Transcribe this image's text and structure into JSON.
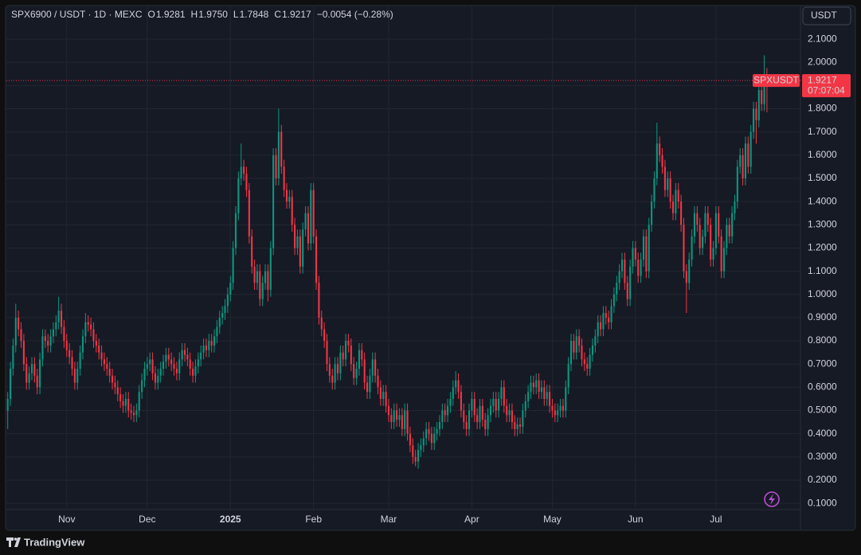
{
  "chart_data": {
    "type": "candlestick",
    "title": "SPX6900 / USDT · 1D · MEXC",
    "header": [
      {
        "key": "O",
        "value": "1.9281"
      },
      {
        "key": "H",
        "value": "1.9750"
      },
      {
        "key": "L",
        "value": "1.7848"
      },
      {
        "key": "C",
        "value": "1.9217"
      }
    ],
    "change": "−0.0054 (−0.28%)",
    "axis_unit": "USDT",
    "price_tag": {
      "symbol": "SPXUSDT",
      "countdown": "07:07:04"
    },
    "brand": "TradingView",
    "up_color": "#089981",
    "down_color": "#f23645",
    "open": [
      0.5,
      0.55,
      0.68,
      0.78,
      0.9,
      0.85,
      0.8,
      0.7,
      0.62,
      0.66,
      0.7,
      0.65,
      0.6,
      0.72,
      0.82,
      0.8,
      0.78,
      0.82,
      0.85,
      0.88,
      0.93,
      0.86,
      0.8,
      0.76,
      0.73,
      0.68,
      0.62,
      0.68,
      0.75,
      0.82,
      0.88,
      0.87,
      0.85,
      0.8,
      0.78,
      0.75,
      0.72,
      0.7,
      0.68,
      0.65,
      0.62,
      0.6,
      0.57,
      0.54,
      0.52,
      0.55,
      0.5,
      0.49,
      0.48,
      0.5,
      0.58,
      0.63,
      0.68,
      0.7,
      0.72,
      0.66,
      0.62,
      0.65,
      0.68,
      0.71,
      0.74,
      0.72,
      0.7,
      0.68,
      0.66,
      0.72,
      0.76,
      0.74,
      0.72,
      0.68,
      0.65,
      0.69,
      0.72,
      0.75,
      0.78,
      0.76,
      0.8,
      0.78,
      0.82,
      0.86,
      0.9,
      0.92,
      0.95,
      1.0,
      1.05,
      1.2,
      1.35,
      1.5,
      1.55,
      1.52,
      1.45,
      1.25,
      1.12,
      1.05,
      1.1,
      0.98,
      1.05,
      1.1,
      1.02,
      1.2,
      1.6,
      1.5,
      1.7,
      1.55,
      1.45,
      1.4,
      1.42,
      1.3,
      1.2,
      1.25,
      1.12,
      1.28,
      1.35,
      1.22,
      1.45,
      1.25,
      1.05,
      0.9,
      0.85,
      0.8,
      0.7,
      0.65,
      0.62,
      0.7,
      0.66,
      0.75,
      0.72,
      0.8,
      0.78,
      0.7,
      0.64,
      0.68,
      0.76,
      0.72,
      0.62,
      0.58,
      0.65,
      0.72,
      0.65,
      0.6,
      0.55,
      0.58,
      0.52,
      0.48,
      0.45,
      0.5,
      0.46,
      0.48,
      0.42,
      0.5,
      0.4,
      0.35,
      0.3,
      0.28,
      0.33,
      0.35,
      0.38,
      0.42,
      0.4,
      0.36,
      0.4,
      0.42,
      0.45,
      0.5,
      0.48,
      0.52,
      0.55,
      0.6,
      0.63,
      0.58,
      0.5,
      0.45,
      0.42,
      0.5,
      0.55,
      0.48,
      0.45,
      0.52,
      0.46,
      0.42,
      0.48,
      0.52,
      0.55,
      0.5,
      0.55,
      0.6,
      0.52,
      0.48,
      0.5,
      0.45,
      0.42,
      0.44,
      0.43,
      0.5,
      0.54,
      0.58,
      0.62,
      0.6,
      0.63,
      0.58,
      0.6,
      0.55,
      0.58,
      0.52,
      0.5,
      0.48,
      0.5,
      0.52,
      0.5,
      0.6,
      0.7,
      0.8,
      0.75,
      0.82,
      0.78,
      0.72,
      0.7,
      0.68,
      0.74,
      0.78,
      0.82,
      0.88,
      0.85,
      0.92,
      0.9,
      0.88,
      0.95,
      1.0,
      1.05,
      1.1,
      1.15,
      1.05,
      0.98,
      1.12,
      1.2,
      1.15,
      1.08,
      1.15,
      1.25,
      1.1,
      1.3,
      1.4,
      1.5,
      1.65,
      1.6,
      1.55,
      1.45,
      1.5,
      1.4,
      1.35,
      1.45,
      1.4,
      1.3,
      1.1,
      1.05,
      1.15,
      1.25,
      1.35,
      1.3,
      1.2,
      1.25,
      1.35,
      1.3,
      1.15,
      1.2,
      1.35,
      1.25,
      1.1,
      1.2,
      1.3,
      1.25,
      1.35,
      1.4,
      1.55,
      1.6,
      1.5,
      1.65,
      1.55,
      1.7,
      1.8,
      1.75,
      1.88,
      1.82,
      1.9281
    ],
    "high": [
      0.58,
      0.71,
      0.81,
      0.96,
      0.93,
      0.88,
      0.83,
      0.73,
      0.69,
      0.73,
      0.73,
      0.68,
      0.75,
      0.85,
      0.85,
      0.83,
      0.85,
      0.88,
      0.91,
      0.99,
      0.96,
      0.89,
      0.83,
      0.79,
      0.76,
      0.71,
      0.71,
      0.78,
      0.85,
      0.92,
      0.91,
      0.9,
      0.88,
      0.83,
      0.81,
      0.78,
      0.75,
      0.73,
      0.71,
      0.68,
      0.65,
      0.63,
      0.6,
      0.57,
      0.58,
      0.58,
      0.53,
      0.52,
      0.53,
      0.61,
      0.66,
      0.71,
      0.73,
      0.75,
      0.75,
      0.69,
      0.68,
      0.71,
      0.74,
      0.77,
      0.77,
      0.75,
      0.73,
      0.71,
      0.75,
      0.79,
      0.79,
      0.77,
      0.75,
      0.71,
      0.72,
      0.75,
      0.78,
      0.81,
      0.81,
      0.83,
      0.83,
      0.85,
      0.89,
      0.93,
      0.95,
      0.98,
      1.03,
      1.08,
      1.23,
      1.38,
      1.53,
      1.65,
      1.58,
      1.55,
      1.48,
      1.28,
      1.15,
      1.13,
      1.13,
      1.08,
      1.13,
      1.13,
      1.23,
      1.63,
      1.63,
      1.8,
      1.73,
      1.58,
      1.48,
      1.45,
      1.45,
      1.33,
      1.28,
      1.28,
      1.31,
      1.38,
      1.38,
      1.48,
      1.48,
      1.28,
      1.08,
      0.93,
      0.88,
      0.83,
      0.73,
      0.68,
      0.73,
      0.73,
      0.78,
      0.78,
      0.83,
      0.83,
      0.81,
      0.73,
      0.71,
      0.79,
      0.79,
      0.75,
      0.65,
      0.68,
      0.75,
      0.75,
      0.68,
      0.63,
      0.61,
      0.61,
      0.55,
      0.51,
      0.53,
      0.53,
      0.51,
      0.51,
      0.53,
      0.53,
      0.43,
      0.38,
      0.33,
      0.36,
      0.38,
      0.41,
      0.45,
      0.45,
      0.43,
      0.43,
      0.45,
      0.48,
      0.53,
      0.53,
      0.55,
      0.58,
      0.63,
      0.67,
      0.66,
      0.61,
      0.53,
      0.48,
      0.53,
      0.58,
      0.58,
      0.51,
      0.55,
      0.55,
      0.49,
      0.51,
      0.55,
      0.58,
      0.58,
      0.58,
      0.63,
      0.63,
      0.55,
      0.53,
      0.53,
      0.48,
      0.47,
      0.47,
      0.53,
      0.57,
      0.61,
      0.65,
      0.65,
      0.66,
      0.66,
      0.63,
      0.63,
      0.61,
      0.61,
      0.55,
      0.53,
      0.53,
      0.55,
      0.55,
      0.63,
      0.73,
      0.83,
      0.83,
      0.85,
      0.85,
      0.81,
      0.75,
      0.73,
      0.77,
      0.81,
      0.85,
      0.91,
      0.91,
      0.95,
      0.95,
      0.93,
      0.98,
      1.03,
      1.08,
      1.13,
      1.18,
      1.18,
      1.08,
      1.15,
      1.23,
      1.23,
      1.18,
      1.18,
      1.28,
      1.28,
      1.33,
      1.43,
      1.53,
      1.74,
      1.68,
      1.63,
      1.58,
      1.53,
      1.53,
      1.43,
      1.48,
      1.48,
      1.43,
      1.33,
      1.13,
      1.18,
      1.28,
      1.38,
      1.38,
      1.33,
      1.28,
      1.38,
      1.38,
      1.33,
      1.23,
      1.38,
      1.38,
      1.28,
      1.23,
      1.33,
      1.33,
      1.38,
      1.43,
      1.58,
      1.63,
      1.63,
      1.68,
      1.68,
      1.73,
      1.83,
      1.83,
      1.91,
      1.91,
      2.03,
      1.975
    ],
    "low": [
      0.42,
      0.52,
      0.65,
      0.75,
      0.82,
      0.77,
      0.67,
      0.59,
      0.59,
      0.63,
      0.62,
      0.57,
      0.57,
      0.69,
      0.77,
      0.75,
      0.75,
      0.79,
      0.82,
      0.85,
      0.83,
      0.77,
      0.73,
      0.7,
      0.65,
      0.59,
      0.59,
      0.65,
      0.72,
      0.79,
      0.84,
      0.82,
      0.77,
      0.75,
      0.72,
      0.69,
      0.67,
      0.65,
      0.62,
      0.59,
      0.57,
      0.54,
      0.51,
      0.49,
      0.49,
      0.47,
      0.46,
      0.45,
      0.45,
      0.47,
      0.55,
      0.6,
      0.65,
      0.67,
      0.63,
      0.59,
      0.59,
      0.62,
      0.65,
      0.68,
      0.69,
      0.67,
      0.65,
      0.63,
      0.63,
      0.69,
      0.71,
      0.69,
      0.65,
      0.62,
      0.62,
      0.66,
      0.69,
      0.72,
      0.73,
      0.73,
      0.75,
      0.75,
      0.79,
      0.83,
      0.87,
      0.89,
      0.92,
      0.97,
      1.02,
      1.17,
      1.32,
      1.47,
      1.49,
      1.42,
      1.22,
      1.09,
      1.02,
      1.02,
      0.95,
      0.95,
      1.02,
      0.97,
      0.99,
      1.17,
      1.47,
      1.47,
      1.52,
      1.42,
      1.37,
      1.37,
      1.27,
      1.17,
      1.17,
      1.09,
      1.09,
      1.25,
      1.19,
      1.19,
      1.22,
      1.02,
      0.87,
      0.82,
      0.77,
      0.67,
      0.62,
      0.59,
      0.59,
      0.63,
      0.63,
      0.69,
      0.69,
      0.75,
      0.67,
      0.61,
      0.61,
      0.65,
      0.69,
      0.59,
      0.55,
      0.55,
      0.62,
      0.62,
      0.57,
      0.52,
      0.52,
      0.49,
      0.45,
      0.42,
      0.42,
      0.43,
      0.43,
      0.39,
      0.39,
      0.37,
      0.32,
      0.27,
      0.26,
      0.25,
      0.3,
      0.32,
      0.35,
      0.37,
      0.33,
      0.33,
      0.37,
      0.39,
      0.42,
      0.45,
      0.45,
      0.49,
      0.52,
      0.57,
      0.55,
      0.47,
      0.42,
      0.39,
      0.39,
      0.47,
      0.45,
      0.42,
      0.42,
      0.43,
      0.39,
      0.39,
      0.45,
      0.49,
      0.47,
      0.47,
      0.52,
      0.49,
      0.45,
      0.45,
      0.42,
      0.39,
      0.39,
      0.4,
      0.4,
      0.47,
      0.51,
      0.55,
      0.57,
      0.57,
      0.55,
      0.55,
      0.52,
      0.52,
      0.49,
      0.47,
      0.45,
      0.45,
      0.47,
      0.47,
      0.47,
      0.57,
      0.67,
      0.72,
      0.72,
      0.75,
      0.69,
      0.67,
      0.65,
      0.65,
      0.71,
      0.75,
      0.79,
      0.82,
      0.82,
      0.87,
      0.85,
      0.85,
      0.92,
      0.97,
      1.02,
      1.07,
      1.02,
      0.95,
      0.95,
      1.09,
      1.12,
      1.05,
      1.05,
      1.12,
      1.07,
      1.07,
      1.27,
      1.37,
      1.47,
      1.57,
      1.52,
      1.42,
      1.42,
      1.37,
      1.32,
      1.32,
      1.37,
      1.27,
      1.07,
      0.92,
      1.02,
      1.12,
      1.22,
      1.27,
      1.17,
      1.17,
      1.22,
      1.27,
      1.12,
      1.12,
      1.17,
      1.22,
      1.07,
      1.07,
      1.17,
      1.22,
      1.22,
      1.32,
      1.37,
      1.52,
      1.47,
      1.47,
      1.52,
      1.52,
      1.67,
      1.65,
      1.72,
      1.79,
      1.79,
      1.7848
    ],
    "close": [
      0.55,
      0.68,
      0.78,
      0.9,
      0.85,
      0.8,
      0.7,
      0.62,
      0.66,
      0.7,
      0.65,
      0.6,
      0.72,
      0.82,
      0.8,
      0.78,
      0.82,
      0.85,
      0.88,
      0.93,
      0.86,
      0.8,
      0.76,
      0.73,
      0.68,
      0.62,
      0.68,
      0.75,
      0.82,
      0.88,
      0.87,
      0.85,
      0.8,
      0.78,
      0.75,
      0.72,
      0.7,
      0.68,
      0.65,
      0.62,
      0.6,
      0.57,
      0.54,
      0.52,
      0.55,
      0.5,
      0.49,
      0.48,
      0.5,
      0.58,
      0.63,
      0.68,
      0.7,
      0.72,
      0.66,
      0.62,
      0.65,
      0.68,
      0.71,
      0.74,
      0.72,
      0.7,
      0.68,
      0.66,
      0.72,
      0.76,
      0.74,
      0.72,
      0.68,
      0.65,
      0.69,
      0.72,
      0.75,
      0.78,
      0.76,
      0.8,
      0.78,
      0.82,
      0.86,
      0.9,
      0.92,
      0.95,
      1.0,
      1.05,
      1.2,
      1.35,
      1.5,
      1.55,
      1.52,
      1.45,
      1.25,
      1.12,
      1.05,
      1.1,
      0.98,
      1.05,
      1.1,
      1.02,
      1.2,
      1.6,
      1.5,
      1.7,
      1.55,
      1.45,
      1.4,
      1.42,
      1.3,
      1.2,
      1.25,
      1.12,
      1.28,
      1.35,
      1.22,
      1.45,
      1.25,
      1.05,
      0.9,
      0.85,
      0.8,
      0.7,
      0.65,
      0.62,
      0.7,
      0.66,
      0.75,
      0.72,
      0.8,
      0.78,
      0.7,
      0.64,
      0.68,
      0.76,
      0.72,
      0.62,
      0.58,
      0.65,
      0.72,
      0.65,
      0.6,
      0.55,
      0.58,
      0.52,
      0.48,
      0.45,
      0.5,
      0.46,
      0.48,
      0.42,
      0.5,
      0.4,
      0.35,
      0.3,
      0.28,
      0.33,
      0.35,
      0.38,
      0.42,
      0.4,
      0.36,
      0.4,
      0.42,
      0.45,
      0.5,
      0.48,
      0.52,
      0.55,
      0.6,
      0.63,
      0.58,
      0.5,
      0.45,
      0.42,
      0.5,
      0.55,
      0.48,
      0.45,
      0.52,
      0.46,
      0.42,
      0.48,
      0.52,
      0.55,
      0.5,
      0.55,
      0.6,
      0.52,
      0.48,
      0.5,
      0.45,
      0.42,
      0.44,
      0.43,
      0.5,
      0.54,
      0.58,
      0.62,
      0.6,
      0.63,
      0.58,
      0.6,
      0.55,
      0.58,
      0.52,
      0.5,
      0.48,
      0.5,
      0.52,
      0.5,
      0.6,
      0.7,
      0.8,
      0.75,
      0.82,
      0.78,
      0.72,
      0.7,
      0.68,
      0.74,
      0.78,
      0.82,
      0.88,
      0.85,
      0.92,
      0.9,
      0.88,
      0.95,
      1.0,
      1.05,
      1.1,
      1.15,
      1.05,
      0.98,
      1.12,
      1.2,
      1.15,
      1.08,
      1.15,
      1.25,
      1.1,
      1.3,
      1.4,
      1.5,
      1.65,
      1.6,
      1.55,
      1.45,
      1.5,
      1.4,
      1.35,
      1.45,
      1.4,
      1.3,
      1.1,
      1.05,
      1.15,
      1.25,
      1.35,
      1.3,
      1.2,
      1.25,
      1.35,
      1.3,
      1.15,
      1.2,
      1.35,
      1.25,
      1.1,
      1.2,
      1.3,
      1.25,
      1.35,
      1.4,
      1.55,
      1.6,
      1.5,
      1.65,
      1.55,
      1.7,
      1.8,
      1.75,
      1.88,
      1.82,
      1.92,
      1.9217
    ],
    "xlim": [
      -0.5,
      295.5
    ],
    "xticks": [
      {
        "value": 22,
        "label": "Nov"
      },
      {
        "value": 52,
        "label": "Dec"
      },
      {
        "value": 83,
        "label": "2025"
      },
      {
        "value": 114,
        "label": "Feb"
      },
      {
        "value": 142,
        "label": "Mar"
      },
      {
        "value": 173,
        "label": "Apr"
      },
      {
        "value": 203,
        "label": "May"
      },
      {
        "value": 234,
        "label": "Jun"
      },
      {
        "value": 264,
        "label": "Jul"
      }
    ],
    "ylim": [
      0.073,
      2.241
    ],
    "yticks": [
      {
        "value": 0.1,
        "label": "0.1000"
      },
      {
        "value": 0.2,
        "label": "0.2000"
      },
      {
        "value": 0.3,
        "label": "0.3000"
      },
      {
        "value": 0.4,
        "label": "0.4000"
      },
      {
        "value": 0.5,
        "label": "0.5000"
      },
      {
        "value": 0.6,
        "label": "0.6000"
      },
      {
        "value": 0.7,
        "label": "0.7000"
      },
      {
        "value": 0.8,
        "label": "0.8000"
      },
      {
        "value": 0.9,
        "label": "0.9000"
      },
      {
        "value": 1.0,
        "label": "1.0000"
      },
      {
        "value": 1.1,
        "label": "1.1000"
      },
      {
        "value": 1.2,
        "label": "1.2000"
      },
      {
        "value": 1.3,
        "label": "1.3000"
      },
      {
        "value": 1.4,
        "label": "1.4000"
      },
      {
        "value": 1.5,
        "label": "1.5000"
      },
      {
        "value": 1.6,
        "label": "1.6000"
      },
      {
        "value": 1.7,
        "label": "1.7000"
      },
      {
        "value": 1.8,
        "label": "1.8000"
      },
      {
        "value": 1.9,
        "label": "1.9000"
      },
      {
        "value": 2.0,
        "label": "2.0000"
      },
      {
        "value": 2.1,
        "label": "2.1000"
      }
    ],
    "grid": true
  }
}
